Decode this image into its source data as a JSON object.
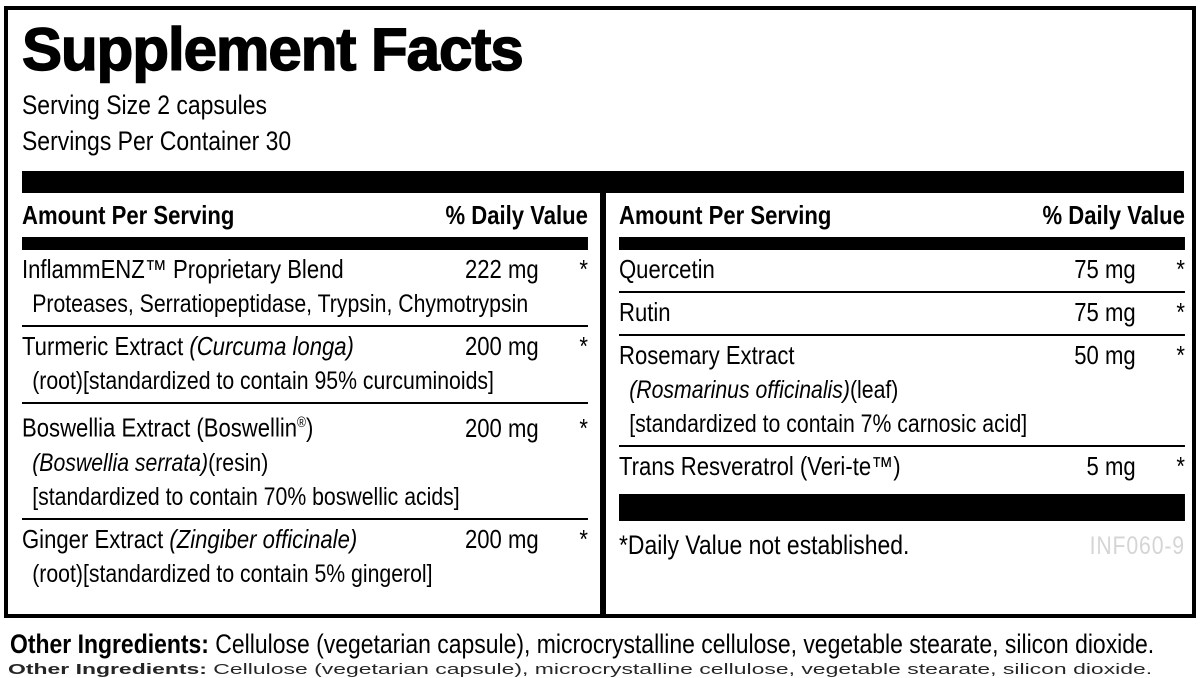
{
  "panel": {
    "title": "Supplement Facts",
    "serving_size": "Serving Size 2 capsules",
    "servings_per_container": "Servings Per Container 30",
    "column_header": {
      "amount": "Amount Per Serving",
      "dv": "% Daily Value"
    },
    "columns": [
      {
        "rows": [
          {
            "name": [
              {
                "t": "InflammENZ™ Proprietary Blend"
              }
            ],
            "amount": "222 mg",
            "dv": "*",
            "subs": [
              [
                {
                  "t": "Proteases, Serratiopeptidase, Trypsin, Chymotrypsin"
                }
              ]
            ]
          },
          {
            "name": [
              {
                "t": "Turmeric Extract "
              },
              {
                "t": "(Curcuma longa)",
                "i": true
              }
            ],
            "amount": "200 mg",
            "dv": "*",
            "subs": [
              [
                {
                  "t": "(root)[standardized to contain 95% curcuminoids]"
                }
              ]
            ]
          },
          {
            "name": [
              {
                "t": "Boswellia Extract (Boswellin"
              },
              {
                "t": "®",
                "sup": true
              },
              {
                "t": ")"
              }
            ],
            "amount": "200 mg",
            "dv": "*",
            "subs": [
              [
                {
                  "t": "(Boswellia serrata)",
                  "i": true
                },
                {
                  "t": "(resin)"
                }
              ],
              [
                {
                  "t": "[standardized to contain 70% boswellic acids]"
                }
              ]
            ]
          },
          {
            "name": [
              {
                "t": "Ginger Extract "
              },
              {
                "t": "(Zingiber officinale)",
                "i": true
              }
            ],
            "amount": "200 mg",
            "dv": "*",
            "subs": [
              [
                {
                  "t": "(root)[standardized to contain 5% gingerol]"
                }
              ]
            ]
          }
        ]
      },
      {
        "rows": [
          {
            "name": [
              {
                "t": "Quercetin"
              }
            ],
            "amount": "75 mg",
            "dv": "*",
            "subs": []
          },
          {
            "name": [
              {
                "t": "Rutin"
              }
            ],
            "amount": "75 mg",
            "dv": "*",
            "subs": []
          },
          {
            "name": [
              {
                "t": "Rosemary Extract"
              }
            ],
            "amount": "50 mg",
            "dv": "*",
            "subs": [
              [
                {
                  "t": "(Rosmarinus officinalis)",
                  "i": true
                },
                {
                  "t": "(leaf)"
                }
              ],
              [
                {
                  "t": "[standardized to contain 7% carnosic acid]"
                }
              ]
            ]
          },
          {
            "name": [
              {
                "t": "Trans Resveratrol (Veri-te™)"
              }
            ],
            "amount": "5 mg",
            "dv": "*",
            "subs": []
          }
        ]
      }
    ],
    "footnote": "*Daily Value not established.",
    "code": "INF060-9"
  },
  "footer": {
    "other_ingredients_label": "Other Ingredients:",
    "other_ingredients_text": " Cellulose (vegetarian capsule), microcrystalline cellulose, vegetable stearate, silicon dioxide."
  },
  "colors": {
    "border": "#000000",
    "background": "#ffffff",
    "code_text": "#d5d5d5"
  }
}
